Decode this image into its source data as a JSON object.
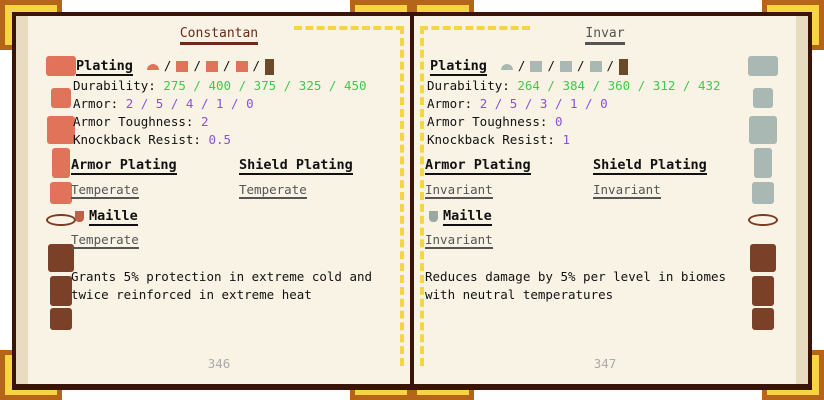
{
  "left": {
    "title": "Constantan",
    "plating_label": "Plating",
    "separator": "/",
    "durability_label": "Durability:",
    "durability": "275 / 400 / 375 / 325 / 450",
    "armor_label": "Armor:",
    "armor": "2 / 5 / 4 / 1 / 0",
    "toughness_label": "Armor Toughness:",
    "toughness": "2",
    "knockback_label": "Knockback Resist:",
    "knockback": "0.5",
    "armor_plating_label": "Armor Plating",
    "armor_plating_trait": "Temperate",
    "shield_plating_label": "Shield Plating",
    "shield_plating_trait": "Temperate",
    "maille_label": "Maille",
    "maille_trait": "Temperate",
    "description": "Grants 5% protection in extreme cold and twice reinforced in extreme heat",
    "page_number": "346",
    "color": "#e0735a"
  },
  "right": {
    "title": "Invar",
    "plating_label": "Plating",
    "separator": "/",
    "durability_label": "Durability:",
    "durability": "264 / 384 / 360 / 312 / 432",
    "armor_label": "Armor:",
    "armor": "2 / 5 / 3 / 1 / 0",
    "toughness_label": "Armor Toughness:",
    "toughness": "0",
    "knockback_label": "Knockback Resist:",
    "knockback": "1",
    "armor_plating_label": "Armor Plating",
    "armor_plating_trait": "Invariant",
    "shield_plating_label": "Shield Plating",
    "shield_plating_trait": "Invariant",
    "maille_label": "Maille",
    "maille_trait": "Invariant",
    "description": "Reduces damage by 5% per level in biomes with neutral temperatures",
    "page_number": "347",
    "color": "#a9b8b2"
  },
  "icons": [
    "ingot-icon",
    "helmet-icon",
    "chestplate-icon",
    "leggings-icon",
    "boots-icon",
    "maille-ring-icon",
    "leather-chest-icon",
    "leather-leggings-icon",
    "leather-boots-icon"
  ]
}
